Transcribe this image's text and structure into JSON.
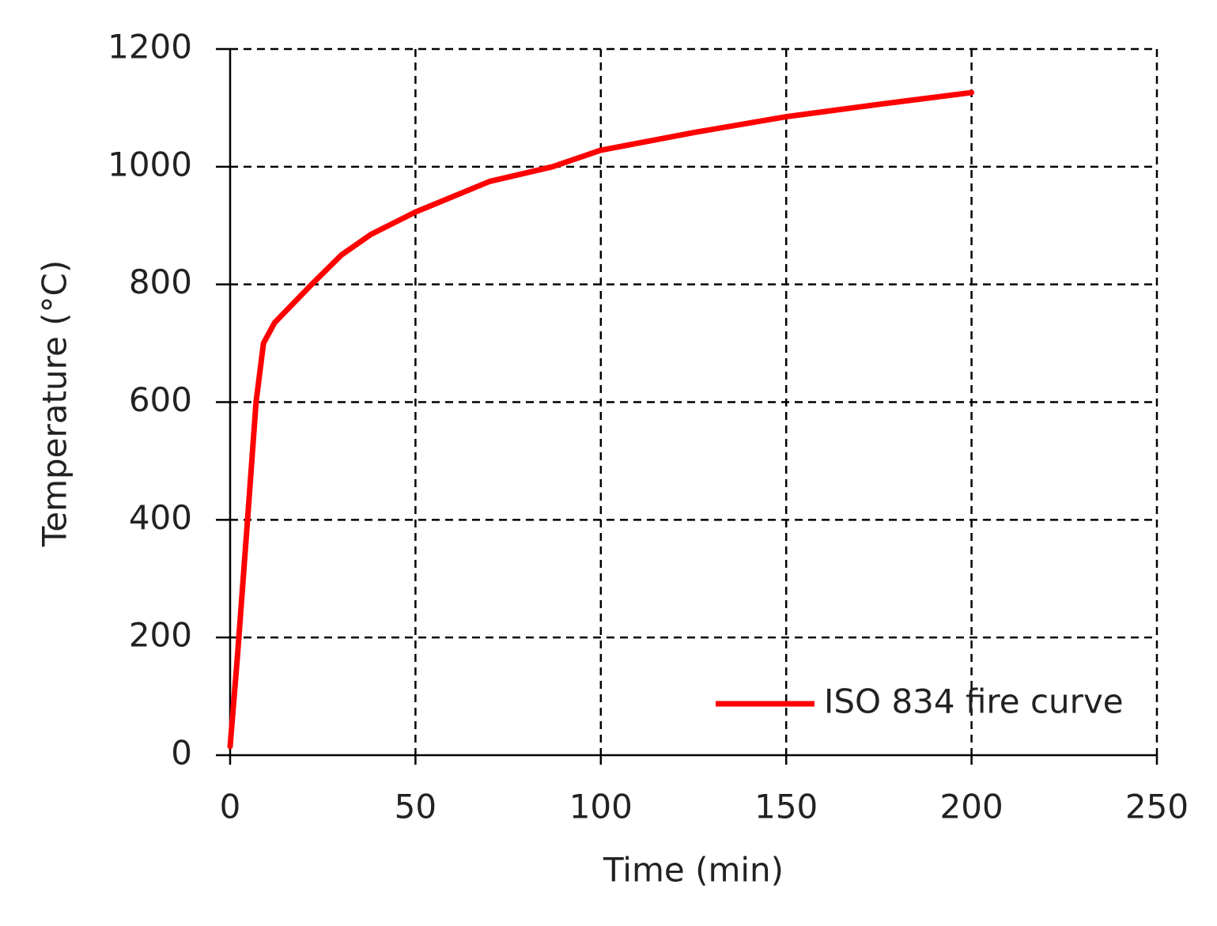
{
  "chart_data": {
    "type": "line",
    "x_label": "Time (min)",
    "y_label": "Temperature (°C)",
    "x": [
      0,
      2,
      4.7,
      7,
      9,
      12,
      22,
      30,
      38,
      50,
      70,
      87,
      100,
      125,
      150,
      175,
      200
    ],
    "series": [
      {
        "name": "ISO 834 fire curve",
        "color": "#ff0000",
        "values": [
          15,
          170,
          400,
          600,
          700,
          735,
          800,
          850,
          885,
          923,
          975,
          1000,
          1028,
          1058,
          1085,
          1106,
          1126
        ]
      }
    ],
    "xlim": [
      0,
      250
    ],
    "xticks": [
      0,
      50,
      100,
      150,
      200,
      250
    ],
    "ylim": [
      0,
      1200
    ],
    "yticks": [
      0,
      200,
      400,
      600,
      800,
      1000,
      1200
    ],
    "grid": true,
    "legend": "lower-right"
  }
}
